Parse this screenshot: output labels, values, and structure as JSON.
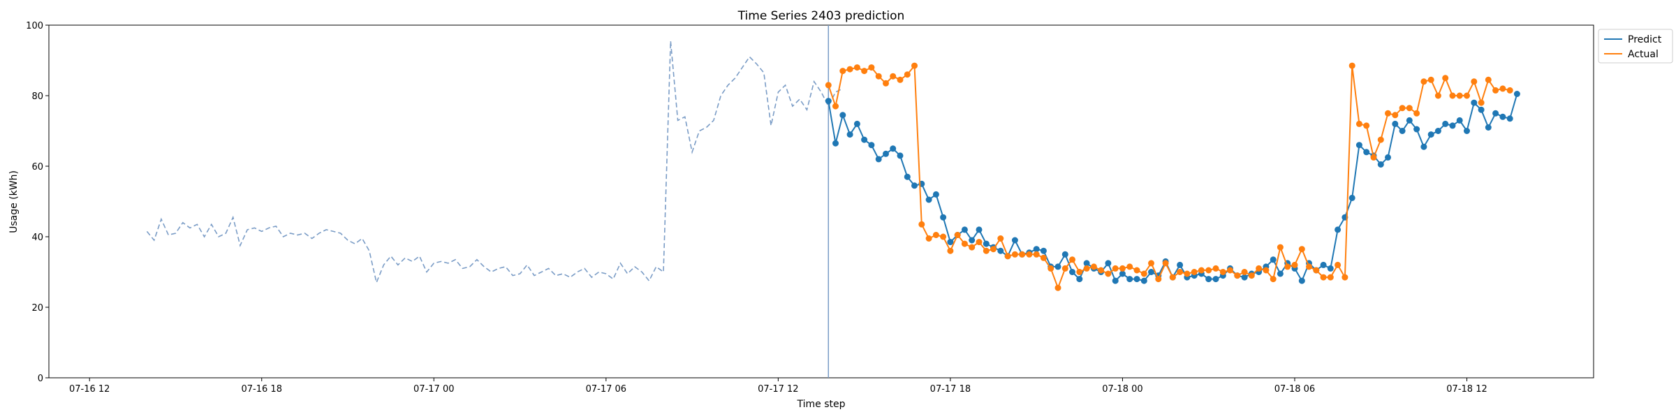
{
  "chart_data": {
    "type": "line",
    "title": "Time Series 2403 prediction",
    "xlabel": "Time step",
    "ylabel": "Usage (kWh)",
    "ylim": [
      0,
      100
    ],
    "yticks": [
      0,
      20,
      40,
      60,
      80,
      100
    ],
    "xlim": [
      "2024-07-16 10:35",
      "2024-07-18 16:25"
    ],
    "xticks": [
      {
        "t": "2024-07-16 12:00",
        "label": "07-16 12"
      },
      {
        "t": "2024-07-16 18:00",
        "label": "07-16 18"
      },
      {
        "t": "2024-07-17 00:00",
        "label": "07-17 00"
      },
      {
        "t": "2024-07-17 06:00",
        "label": "07-17 06"
      },
      {
        "t": "2024-07-17 12:00",
        "label": "07-17 12"
      },
      {
        "t": "2024-07-17 18:00",
        "label": "07-17 18"
      },
      {
        "t": "2024-07-18 00:00",
        "label": "07-18 00"
      },
      {
        "t": "2024-07-18 06:00",
        "label": "07-18 06"
      },
      {
        "t": "2024-07-18 12:00",
        "label": "07-18 12"
      }
    ],
    "interval_minutes": 15,
    "vline_time": "2024-07-17 13:45",
    "legend_position": "upper-right-outside",
    "history": {
      "start": "2024-07-16 14:00",
      "color": "#7a9cc6",
      "style": "dashed",
      "values": [
        41.5,
        39,
        45,
        40.5,
        41,
        44,
        42.5,
        43.5,
        40,
        43.5,
        40,
        41,
        45.5,
        37.5,
        42,
        42.5,
        41.5,
        42.5,
        43,
        40,
        41,
        40.5,
        41,
        39.5,
        41,
        42,
        41.5,
        41,
        39,
        38,
        39.5,
        36,
        27,
        32,
        34.5,
        32,
        34,
        33,
        34.5,
        30,
        32.5,
        33,
        32.5,
        33.5,
        31,
        31.5,
        33.5,
        31.5,
        30,
        31,
        31.5,
        29,
        29.5,
        32,
        29,
        30,
        31,
        29,
        29.5,
        28.5,
        30,
        31,
        28.5,
        30,
        29.5,
        28,
        32.5,
        29.5,
        31.5,
        30,
        27.5,
        31.5,
        30,
        95.5,
        73,
        74,
        64,
        70,
        71,
        73,
        80,
        83,
        85,
        88,
        91,
        89,
        86.5,
        71.5,
        81,
        83,
        77,
        79,
        76,
        84,
        81,
        77,
        81,
        82
      ]
    },
    "series": [
      {
        "name": "Predict",
        "color": "#1f77b4",
        "start": "2024-07-17 13:45",
        "values": [
          78.5,
          66.5,
          74.5,
          69,
          72,
          67.5,
          66,
          62,
          63.5,
          65,
          63,
          57,
          54.5,
          55,
          50.5,
          52,
          45.5,
          38.5,
          40.5,
          42,
          39,
          42,
          38,
          37,
          36,
          34.5,
          39,
          35,
          35.5,
          36.5,
          36,
          31.5,
          31.5,
          35,
          30,
          28,
          32.5,
          31,
          30,
          32.5,
          27.5,
          29.5,
          28,
          28,
          27.5,
          30,
          29,
          33,
          28.5,
          32,
          28.5,
          29,
          29.5,
          28,
          28,
          29,
          31,
          29,
          28.5,
          29.5,
          30,
          31.5,
          33.5,
          29.5,
          32.5,
          31,
          27.5,
          32.5,
          30.5,
          32,
          31,
          42,
          45.5,
          51,
          66,
          64,
          63,
          60.5,
          62.5,
          72,
          70,
          73,
          70.5,
          65.5,
          69,
          70,
          72,
          71.5,
          73,
          70,
          78,
          76,
          71,
          75,
          74,
          73.5,
          80.5
        ]
      },
      {
        "name": "Actual",
        "color": "#ff7f0e",
        "start": "2024-07-17 13:45",
        "values": [
          83,
          77,
          87,
          87.5,
          88,
          87,
          88,
          85.5,
          83.5,
          85.5,
          84.5,
          86,
          88.5,
          43.5,
          39.5,
          40.5,
          40,
          36,
          40.5,
          38,
          37,
          38.5,
          36,
          36.5,
          39.5,
          34.5,
          35,
          35,
          35,
          35,
          34,
          31,
          25.5,
          31,
          33.5,
          30,
          31,
          31.5,
          30.5,
          29.5,
          31,
          31,
          31.5,
          30.5,
          29.5,
          32.5,
          28,
          32.5,
          28.5,
          30,
          29.5,
          30,
          30.5,
          30.5,
          31,
          30,
          30.5,
          29,
          30,
          29,
          31,
          30.5,
          28,
          37,
          31.5,
          32,
          36.5,
          31.5,
          30.5,
          28.5,
          28.5,
          32,
          28.5,
          88.5,
          72,
          71.5,
          62.5,
          67.5,
          75,
          74.5,
          76.5,
          76.5,
          75,
          84,
          84.5,
          80,
          85,
          80,
          80,
          80,
          84,
          78,
          84.5,
          81.5,
          82,
          81.5
        ]
      }
    ]
  }
}
